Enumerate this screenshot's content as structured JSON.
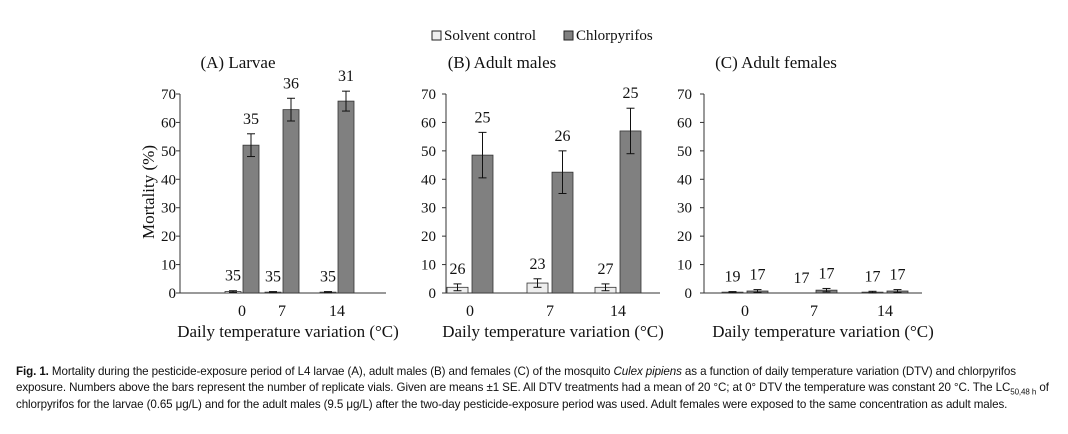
{
  "legend": {
    "items": [
      {
        "label": "Solvent control",
        "color": "#eeeeee"
      },
      {
        "label": "Chlorpyrifos",
        "color": "#808080"
      }
    ]
  },
  "chart_data": [
    {
      "type": "bar",
      "title": "(A) Larvae",
      "xlabel": "Daily temperature variation (°C)",
      "ylabel": "Mortality (%)",
      "ylim": [
        0,
        70
      ],
      "yticks": [
        0,
        10,
        20,
        30,
        40,
        50,
        60,
        70
      ],
      "categories": [
        "0",
        "7",
        "14"
      ],
      "series": [
        {
          "name": "Solvent control",
          "values": [
            0.5,
            0.3,
            0.3
          ],
          "se": [
            0.3,
            0.2,
            0.2
          ],
          "labels": [
            "35",
            "35",
            "35"
          ]
        },
        {
          "name": "Chlorpyrifos",
          "values": [
            52,
            64.5,
            67.5
          ],
          "se": [
            4,
            4,
            3.5
          ],
          "labels": [
            "35",
            "36",
            "31"
          ]
        }
      ]
    },
    {
      "type": "bar",
      "title": "(B) Adult males",
      "xlabel": "Daily temperature variation (°C)",
      "ylabel": "",
      "ylim": [
        0,
        70
      ],
      "yticks": [
        0,
        10,
        20,
        30,
        40,
        50,
        60,
        70
      ],
      "categories": [
        "0",
        "7",
        "14"
      ],
      "series": [
        {
          "name": "Solvent control",
          "values": [
            2,
            3.5,
            2
          ],
          "se": [
            1.2,
            1.5,
            1.2
          ],
          "labels": [
            "26",
            "23",
            "27"
          ]
        },
        {
          "name": "Chlorpyrifos",
          "values": [
            48.5,
            42.5,
            57
          ],
          "se": [
            8,
            7.5,
            8
          ],
          "labels": [
            "25",
            "26",
            "25"
          ]
        }
      ]
    },
    {
      "type": "bar",
      "title": "(C) Adult females",
      "xlabel": "Daily temperature variation (°C)",
      "ylabel": "",
      "ylim": [
        0,
        70
      ],
      "yticks": [
        0,
        10,
        20,
        30,
        40,
        50,
        60,
        70
      ],
      "categories": [
        "0",
        "7",
        "14"
      ],
      "series": [
        {
          "name": "Solvent control",
          "values": [
            0.3,
            0,
            0.3
          ],
          "se": [
            0.2,
            0,
            0.3
          ],
          "labels": [
            "19",
            "17",
            "17"
          ]
        },
        {
          "name": "Chlorpyrifos",
          "values": [
            0.7,
            1.0,
            0.7
          ],
          "se": [
            0.5,
            0.6,
            0.5
          ],
          "labels": [
            "17",
            "17",
            "17"
          ]
        }
      ]
    }
  ],
  "caption": {
    "label": "Fig. 1.",
    "text1": " Mortality during the pesticide-exposure period of L4 larvae (A), adult males (B) and females (C) of the mosquito ",
    "species": "Culex pipiens",
    "text2": " as a function of daily temperature variation (DTV) and chlorpyrifos exposure. Numbers above the bars represent the number of replicate vials. Given are means ±1 SE. All DTV treatments had a mean of 20 °C; at 0° DTV the temperature was constant 20 °C. The LC",
    "subscript": "50,48 h",
    "text3": " of chlorpyrifos for the larvae (0.65 μg/L) and for the adult males (9.5 μg/L) after the two-day pesticide-exposure period was used. Adult females were exposed to the same concentration as adult males."
  }
}
